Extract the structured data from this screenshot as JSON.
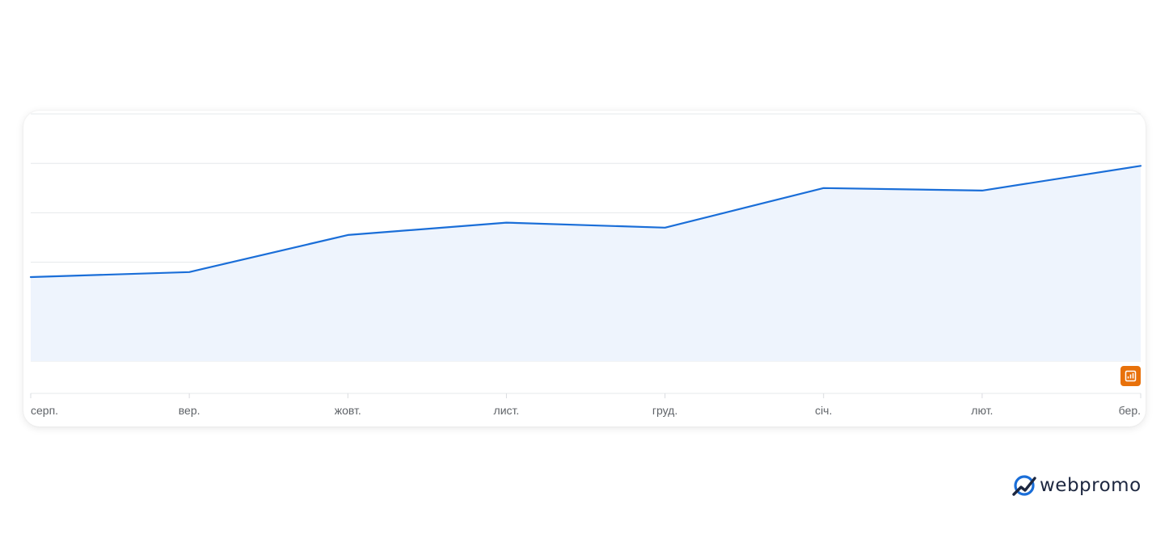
{
  "chart_data": {
    "type": "area",
    "categories": [
      "серп.",
      "вер.",
      "жовт.",
      "лист.",
      "груд.",
      "січ.",
      "лют.",
      "бер."
    ],
    "series": [
      {
        "values": [
          34,
          36,
          51,
          56,
          54,
          70,
          69,
          79
        ]
      }
    ],
    "ylim": [
      0,
      100
    ],
    "grid": true,
    "legend": "none",
    "line_color": "#1a6ed8",
    "fill_color": "#eef4fd",
    "badge_color": "#e8710a",
    "badge_icon": "bar-chart-icon"
  },
  "brand": {
    "name": "webpromo",
    "icon": "webpromo-logo-icon",
    "color": "#1d2740",
    "accent": "#1a6ed8"
  }
}
